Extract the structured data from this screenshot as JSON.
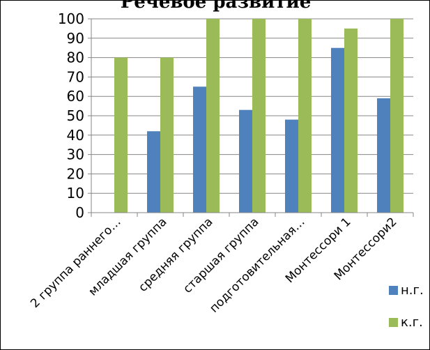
{
  "chart_data": {
    "type": "bar",
    "title": "Речевое развитие",
    "categories": [
      "2 группа раннего…",
      "младшая группа",
      "средняя группа",
      "старшая группа",
      "подготовительная…",
      "Монтессори 1",
      "Монтессори2"
    ],
    "series": [
      {
        "name": "н.г.",
        "color": "#4F81BD",
        "values": [
          0,
          42,
          65,
          53,
          48,
          85,
          59
        ]
      },
      {
        "name": "к.г.",
        "color": "#9BBB59",
        "values": [
          80,
          80,
          100,
          100,
          100,
          95,
          100
        ]
      }
    ],
    "ylim": [
      0,
      100
    ],
    "yticks": [
      0,
      10,
      20,
      30,
      40,
      50,
      60,
      70,
      80,
      90,
      100
    ],
    "grid": true,
    "legend_position": "right"
  }
}
